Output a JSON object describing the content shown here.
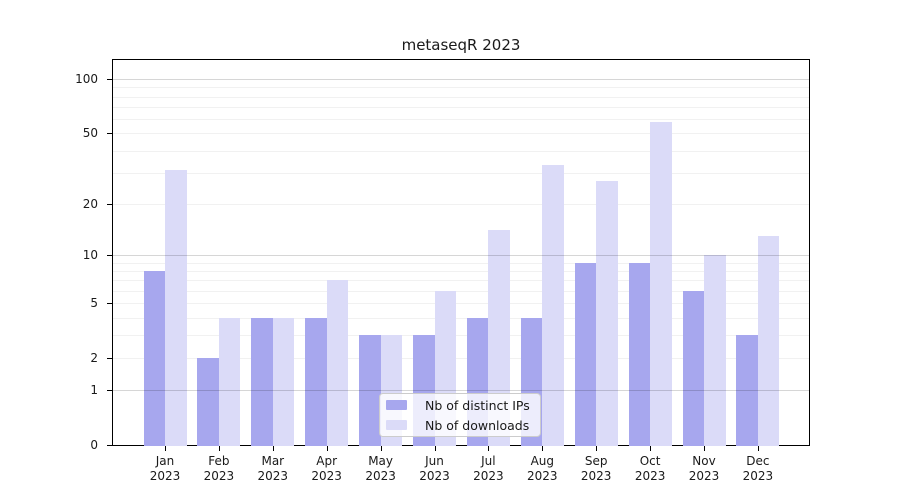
{
  "chart_data": {
    "type": "bar",
    "title": "metaseqR 2023",
    "categories": [
      "Jan",
      "Feb",
      "Mar",
      "Apr",
      "May",
      "Jun",
      "Jul",
      "Aug",
      "Sep",
      "Oct",
      "Nov",
      "Dec"
    ],
    "xlabel_line2": "2023",
    "series": [
      {
        "name": "Nb of distinct IPs",
        "color": "#a7a7ee",
        "values": [
          8,
          2,
          4,
          4,
          3,
          3,
          4,
          4,
          9,
          9,
          6,
          3
        ]
      },
      {
        "name": "Nb of downloads",
        "color": "#dbdbf8",
        "values": [
          31,
          4,
          4,
          7,
          3,
          6,
          14,
          33,
          27,
          58,
          10,
          13
        ]
      }
    ],
    "yscale": "log10(1+x)",
    "yticks": [
      0,
      1,
      2,
      5,
      10,
      20,
      50,
      100
    ],
    "gridlines_minor": [
      2,
      3,
      4,
      5,
      6,
      7,
      8,
      9,
      20,
      30,
      40,
      50,
      60,
      70,
      80,
      90
    ],
    "gridlines_major": [
      1,
      10,
      100
    ],
    "ylim": [
      0,
      127
    ],
    "grid": "on",
    "legend_position": "bottom-center"
  },
  "colors": {
    "bar_distinct_ips": "#a7a7ee",
    "bar_downloads": "#dbdbf8",
    "axis": "#000000",
    "text": "#1a1a1a",
    "grid_minor": "#ececec",
    "grid_major": "#d6d6d6",
    "legend_border": "#cccccc"
  }
}
